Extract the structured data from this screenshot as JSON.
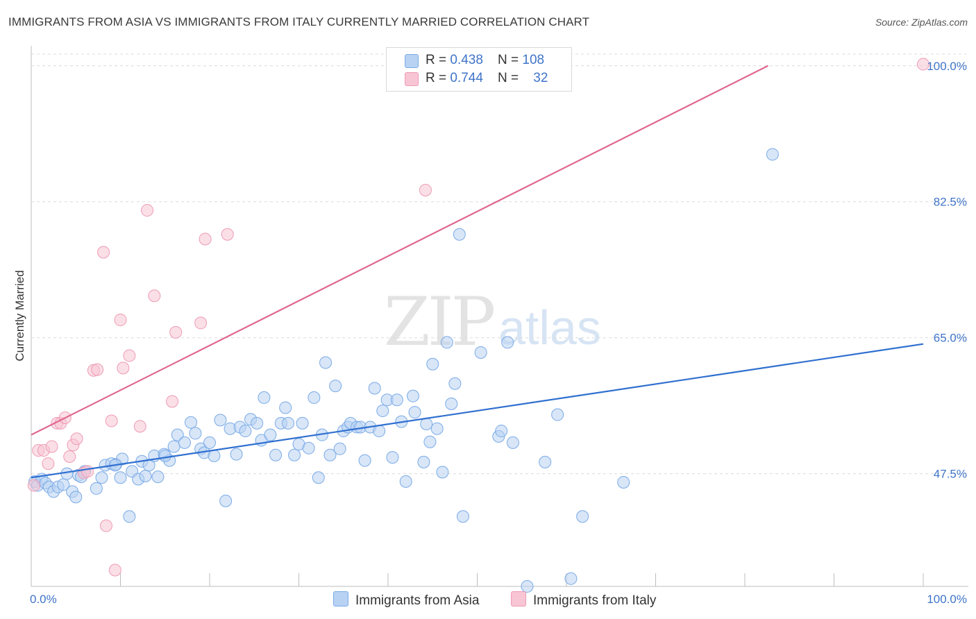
{
  "header": {
    "title": "IMMIGRANTS FROM ASIA VS IMMIGRANTS FROM ITALY CURRENTLY MARRIED CORRELATION CHART",
    "source": "Source: ZipAtlas.com"
  },
  "watermark": {
    "zip": "ZIP",
    "atlas": "atlas"
  },
  "legend": {
    "asia": {
      "r_label": "R = ",
      "r_value": "0.438",
      "n_label": "N = ",
      "n_value": "108"
    },
    "italy": {
      "r_label": "R = ",
      "r_value": "0.744",
      "n_label": "N = ",
      "n_value": "32"
    }
  },
  "bottom_legend": {
    "asia": "Immigrants from Asia",
    "italy": "Immigrants from Italy"
  },
  "colors": {
    "asia_fill": "#b8d2f3",
    "asia_stroke": "#7aaae6",
    "asia_line": "#2f6fd0",
    "italy_fill": "#f8c5d4",
    "italy_stroke": "#ee9ab4",
    "italy_line": "#e0678f",
    "grid": "#dcdcdc",
    "tick_text": "#3f74c8"
  },
  "chart_data": {
    "type": "scatter",
    "title": "IMMIGRANTS FROM ASIA VS IMMIGRANTS FROM ITALY CURRENTLY MARRIED CORRELATION CHART",
    "ylabel": "Currently Married",
    "xlabel": "",
    "xlim": [
      0,
      100
    ],
    "ylim": [
      33,
      101.5
    ],
    "y_ticks": [
      47.5,
      65.0,
      82.5,
      100.0
    ],
    "y_tick_labels": [
      "47.5%",
      "65.0%",
      "82.5%",
      "100.0%"
    ],
    "x_tick_labels": [
      "0.0%",
      "100.0%"
    ],
    "grid": true,
    "legend_position": "top-center",
    "series": [
      {
        "name": "Immigrants from Asia",
        "R": 0.438,
        "N": 108,
        "trend": [
          [
            0,
            47.0
          ],
          [
            100,
            64.2
          ]
        ],
        "points": [
          [
            0.4,
            46.5
          ],
          [
            0.7,
            46.0
          ],
          [
            1.2,
            46.8
          ],
          [
            1.6,
            46.3
          ],
          [
            2.0,
            45.8
          ],
          [
            2.5,
            45.2
          ],
          [
            3.0,
            45.8
          ],
          [
            3.6,
            46.1
          ],
          [
            4.0,
            47.5
          ],
          [
            4.6,
            45.2
          ],
          [
            5.0,
            44.5
          ],
          [
            5.3,
            47.3
          ],
          [
            6.0,
            47.8
          ],
          [
            7.3,
            45.6
          ],
          [
            7.9,
            47.0
          ],
          [
            8.3,
            48.6
          ],
          [
            9.0,
            48.8
          ],
          [
            9.5,
            48.7
          ],
          [
            10.0,
            47.0
          ],
          [
            10.2,
            49.4
          ],
          [
            11.0,
            42.0
          ],
          [
            11.3,
            47.8
          ],
          [
            12.0,
            46.8
          ],
          [
            12.4,
            49.1
          ],
          [
            12.8,
            47.2
          ],
          [
            13.2,
            48.6
          ],
          [
            13.8,
            49.8
          ],
          [
            14.2,
            47.1
          ],
          [
            14.9,
            50.0
          ],
          [
            15.5,
            49.2
          ],
          [
            16.0,
            51.0
          ],
          [
            16.4,
            52.5
          ],
          [
            17.2,
            51.5
          ],
          [
            17.9,
            54.1
          ],
          [
            18.4,
            52.7
          ],
          [
            19.0,
            50.7
          ],
          [
            19.4,
            50.2
          ],
          [
            20.0,
            51.5
          ],
          [
            20.5,
            49.8
          ],
          [
            21.2,
            54.4
          ],
          [
            21.8,
            44.0
          ],
          [
            22.3,
            53.3
          ],
          [
            23.0,
            50.0
          ],
          [
            23.4,
            53.5
          ],
          [
            24.0,
            53.0
          ],
          [
            24.6,
            54.5
          ],
          [
            25.3,
            54.0
          ],
          [
            25.8,
            51.8
          ],
          [
            26.1,
            57.3
          ],
          [
            26.8,
            52.5
          ],
          [
            27.4,
            49.9
          ],
          [
            28.0,
            54.0
          ],
          [
            28.5,
            56.0
          ],
          [
            28.8,
            54.0
          ],
          [
            29.5,
            49.9
          ],
          [
            30.0,
            51.3
          ],
          [
            30.4,
            54.0
          ],
          [
            31.1,
            50.8
          ],
          [
            31.7,
            57.3
          ],
          [
            32.2,
            47.0
          ],
          [
            32.6,
            52.5
          ],
          [
            33.0,
            61.8
          ],
          [
            33.5,
            49.9
          ],
          [
            34.1,
            58.8
          ],
          [
            34.6,
            50.7
          ],
          [
            35.0,
            53.0
          ],
          [
            35.5,
            53.5
          ],
          [
            35.8,
            54.0
          ],
          [
            36.5,
            53.5
          ],
          [
            36.9,
            53.5
          ],
          [
            37.4,
            49.2
          ],
          [
            38.0,
            53.5
          ],
          [
            38.5,
            58.5
          ],
          [
            39.0,
            53.0
          ],
          [
            39.4,
            55.6
          ],
          [
            39.9,
            57.0
          ],
          [
            40.5,
            49.6
          ],
          [
            41.0,
            57.0
          ],
          [
            41.5,
            54.2
          ],
          [
            42.0,
            46.5
          ],
          [
            42.8,
            57.5
          ],
          [
            43.0,
            55.4
          ],
          [
            44.0,
            49.0
          ],
          [
            44.3,
            53.9
          ],
          [
            44.7,
            51.6
          ],
          [
            45.0,
            61.6
          ],
          [
            45.5,
            53.3
          ],
          [
            46.1,
            47.7
          ],
          [
            46.6,
            64.4
          ],
          [
            47.1,
            56.5
          ],
          [
            47.5,
            59.1
          ],
          [
            48.0,
            78.3
          ],
          [
            48.4,
            42.0
          ],
          [
            50.4,
            63.1
          ],
          [
            52.4,
            52.3
          ],
          [
            52.7,
            53.0
          ],
          [
            53.4,
            64.4
          ],
          [
            54.0,
            51.5
          ],
          [
            55.6,
            33.0
          ],
          [
            57.6,
            49.0
          ],
          [
            59.0,
            55.1
          ],
          [
            60.5,
            34.0
          ],
          [
            61.8,
            42.0
          ],
          [
            66.4,
            46.4
          ],
          [
            83.1,
            88.6
          ],
          [
            5.6,
            47.1
          ],
          [
            9.4,
            48.6
          ],
          [
            15.0,
            49.8
          ]
        ]
      },
      {
        "name": "Immigrants from Italy",
        "R": 0.744,
        "N": 32,
        "trend": [
          [
            0,
            52.5
          ],
          [
            82.6,
            100.0
          ]
        ],
        "points": [
          [
            0.3,
            46.0
          ],
          [
            0.8,
            50.5
          ],
          [
            1.4,
            50.5
          ],
          [
            1.9,
            48.8
          ],
          [
            2.3,
            51.0
          ],
          [
            2.9,
            54.0
          ],
          [
            3.3,
            54.0
          ],
          [
            3.8,
            54.7
          ],
          [
            4.3,
            49.7
          ],
          [
            4.7,
            51.2
          ],
          [
            5.1,
            52.0
          ],
          [
            5.9,
            47.6
          ],
          [
            6.3,
            47.8
          ],
          [
            7.0,
            60.8
          ],
          [
            7.4,
            60.9
          ],
          [
            8.1,
            76.0
          ],
          [
            8.4,
            40.8
          ],
          [
            9.0,
            54.3
          ],
          [
            9.4,
            35.1
          ],
          [
            10.0,
            67.3
          ],
          [
            10.3,
            61.1
          ],
          [
            11.0,
            62.7
          ],
          [
            12.2,
            53.6
          ],
          [
            13.0,
            81.4
          ],
          [
            13.8,
            70.4
          ],
          [
            15.8,
            56.8
          ],
          [
            16.2,
            65.7
          ],
          [
            19.0,
            66.9
          ],
          [
            19.5,
            77.7
          ],
          [
            22.0,
            78.3
          ],
          [
            44.2,
            84.0
          ],
          [
            100.0,
            100.2
          ]
        ]
      }
    ]
  }
}
